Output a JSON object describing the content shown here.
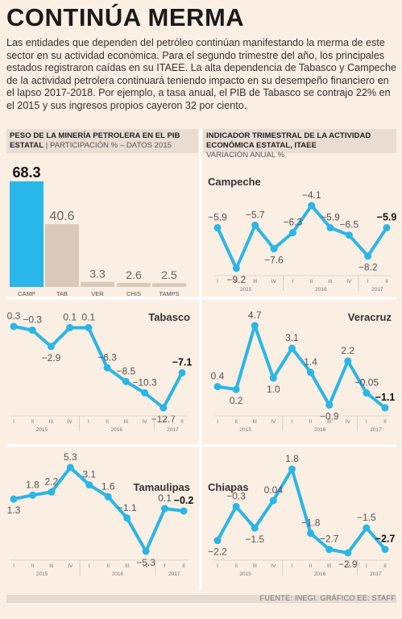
{
  "title": "CONTINÚA MERMA",
  "intro": "Las entidades que dependen del petróleo continúan manifestando la merma de este sector en su actividad económica. Para el segundo trimestre del año, los principales estados registraron caídas en su ITAEE. La alta dependencia de Tabasco y Campeche de la actividad petrolera continuará teniendo impacto en su desempeño financiero en el lapso 2017-2018. Por ejemplo, a tasa anual, el PIB de Tabasco se contrajo 22% en el 2015 y sus ingresos propios cayeron 32 por ciento.",
  "bar_panel": {
    "heading": "PESO DE LA MINERÍA PETROLERA EN EL PIB ESTATAL",
    "subheading": "PARTICIPACIÓN % – DATOS 2015"
  },
  "line_panel": {
    "heading": "INDICADOR TRIMESTRAL DE LA ACTIVIDAD ECONÓMICA ESTATAL, ITAEE",
    "subheading": "VARIACIÓN ANUAL %"
  },
  "source": "FUENTE: INEGI. GRÁFICO EE: STAFF",
  "colors": {
    "accent": "#29b6e8",
    "bar_gray": "#d9c9bb",
    "background": "#fbeee3"
  },
  "chart_data": [
    {
      "type": "bar",
      "title": "PESO DE LA MINERÍA PETROLERA EN EL PIB ESTATAL",
      "subtitle": "PARTICIPACIÓN % – DATOS 2015",
      "categories": [
        "CAMP",
        "TAB",
        "VER",
        "CHIS",
        "TAMPS"
      ],
      "values": [
        68.3,
        40.6,
        3.3,
        2.6,
        2.5
      ],
      "labels": [
        "68.3",
        "40.6",
        "3.3",
        "2.6",
        "2.5"
      ],
      "ylim": [
        0,
        70
      ]
    },
    {
      "type": "line",
      "title": "Campeche",
      "quarter_labels": [
        "I",
        "II",
        "III",
        "IV",
        "I",
        "II",
        "III",
        "IV",
        "I",
        "II"
      ],
      "years": [
        "2015",
        "2016",
        "2017"
      ],
      "values": [
        -5.9,
        -9.2,
        -5.7,
        -7.6,
        -6.3,
        -4.1,
        -5.9,
        -6.5,
        -8.2,
        -5.9
      ],
      "labels": [
        "-5.9",
        "-9.2",
        "-5.7",
        "-7.6",
        "-6.3",
        "-4.1",
        "-5.9",
        "-6.5",
        "-8.2",
        "-5.9"
      ]
    },
    {
      "type": "line",
      "title": "Tabasco",
      "quarter_labels": [
        "I",
        "II",
        "III",
        "IV",
        "I",
        "II",
        "III",
        "IV",
        "I",
        "II"
      ],
      "years": [
        "2015",
        "2016",
        "2017"
      ],
      "values": [
        0.3,
        -0.3,
        -2.9,
        0.1,
        0.1,
        -6.3,
        -8.5,
        -10.3,
        -12.7,
        -7.1
      ],
      "labels": [
        "0.3",
        "-0.3",
        "-2.9",
        "0.1",
        "0.1",
        "-6.3",
        "-8.5",
        "-10.3",
        "-12.7",
        "-7.1"
      ]
    },
    {
      "type": "line",
      "title": "Veracruz",
      "quarter_labels": [
        "I",
        "II",
        "III",
        "IV",
        "I",
        "II",
        "III",
        "IV",
        "I",
        "II"
      ],
      "years": [
        "2015",
        "2016",
        "2017"
      ],
      "values": [
        0.4,
        0.2,
        4.7,
        1.0,
        3.1,
        1.4,
        -0.9,
        2.2,
        -0.05,
        -1.1
      ],
      "labels": [
        "0.4",
        "0.2",
        "4.7",
        "1.0",
        "3.1",
        "1.4",
        "-0.9",
        "2.2",
        "-0.05",
        "-1.1"
      ]
    },
    {
      "type": "line",
      "title": "Tamaulipas",
      "quarter_labels": [
        "I",
        "II",
        "III",
        "IV",
        "I",
        "II",
        "III",
        "IV",
        "I",
        "II"
      ],
      "years": [
        "2015",
        "2016",
        "2017"
      ],
      "values": [
        1.3,
        1.8,
        2.2,
        5.3,
        3.1,
        1.6,
        -1.1,
        -5.3,
        0.1,
        -0.2
      ],
      "labels": [
        "1.3",
        "1.8",
        "2.2",
        "5.3",
        "3.1",
        "1.6",
        "-1.1",
        "-5.3",
        "0.1",
        "-0.2"
      ]
    },
    {
      "type": "line",
      "title": "Chiapas",
      "quarter_labels": [
        "I",
        "II",
        "III",
        "IV",
        "I",
        "II",
        "III",
        "IV",
        "I",
        "II"
      ],
      "years": [
        "2015",
        "2016",
        "2017"
      ],
      "values": [
        -2.2,
        -0.3,
        -1.5,
        0.04,
        1.8,
        -1.8,
        -2.7,
        -2.9,
        -1.5,
        -2.7
      ],
      "labels": [
        "-2.2",
        "-0.3",
        "-1.5",
        "0.04",
        "1.8",
        "-1.8",
        "-2.7",
        "-2.9",
        "-1.5",
        "-2.7"
      ]
    }
  ]
}
